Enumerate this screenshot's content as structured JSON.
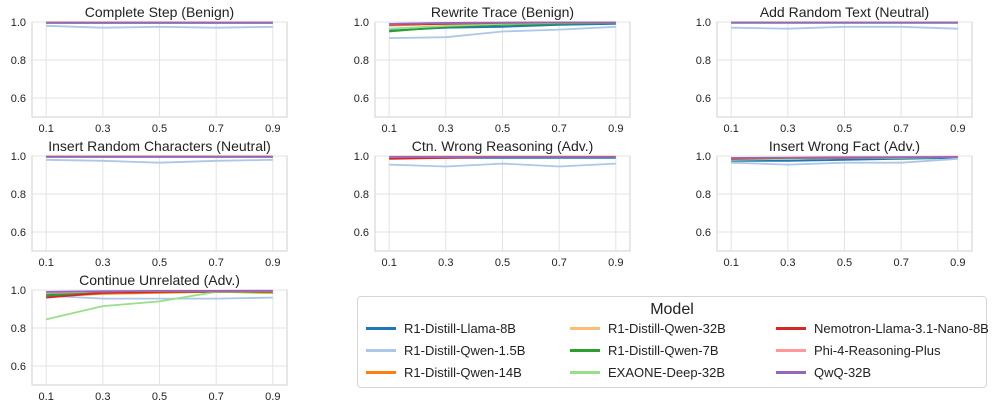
{
  "colors": {
    "R1-Distill-Llama-8B": "#1f77b4",
    "R1-Distill-Qwen-1.5B": "#aec7e8",
    "R1-Distill-Qwen-14B": "#ff7f0e",
    "R1-Distill-Qwen-32B": "#ffbb78",
    "R1-Distill-Qwen-7B": "#2ca02c",
    "EXAONE-Deep-32B": "#98df8a",
    "Nemotron-Llama-3.1-Nano-8B": "#d62728",
    "Phi-4-Reasoning-Plus": "#ff9896",
    "QwQ-32B": "#9467bd"
  },
  "legend": {
    "title": "Model",
    "entries": [
      "R1-Distill-Llama-8B",
      "R1-Distill-Qwen-32B",
      "Nemotron-Llama-3.1-Nano-8B",
      "R1-Distill-Qwen-1.5B",
      "R1-Distill-Qwen-7B",
      "Phi-4-Reasoning-Plus",
      "R1-Distill-Qwen-14B",
      "EXAONE-Deep-32B",
      "QwQ-32B"
    ]
  },
  "chart_data": [
    {
      "type": "line",
      "title": "Complete Step (Benign)",
      "x": [
        0.1,
        0.3,
        0.5,
        0.7,
        0.9
      ],
      "ylim": [
        0.5,
        1.0
      ],
      "yticks": [
        0.6,
        0.8,
        1.0
      ],
      "grid": true,
      "series": [
        {
          "name": "R1-Distill-Llama-8B",
          "values": [
            0.995,
            0.995,
            0.995,
            0.995,
            0.995
          ]
        },
        {
          "name": "R1-Distill-Qwen-1.5B",
          "values": [
            0.98,
            0.97,
            0.975,
            0.97,
            0.975
          ]
        },
        {
          "name": "R1-Distill-Qwen-14B",
          "values": [
            0.997,
            0.998,
            0.998,
            0.998,
            0.998
          ]
        },
        {
          "name": "R1-Distill-Qwen-32B",
          "values": [
            0.997,
            0.997,
            0.998,
            0.997,
            0.998
          ]
        },
        {
          "name": "R1-Distill-Qwen-7B",
          "values": [
            0.996,
            0.996,
            0.997,
            0.997,
            0.997
          ]
        },
        {
          "name": "EXAONE-Deep-32B",
          "values": [
            0.994,
            0.995,
            0.995,
            0.995,
            0.996
          ]
        },
        {
          "name": "Nemotron-Llama-3.1-Nano-8B",
          "values": [
            0.998,
            0.998,
            0.998,
            0.998,
            0.998
          ]
        },
        {
          "name": "Phi-4-Reasoning-Plus",
          "values": [
            0.997,
            0.997,
            0.997,
            0.997,
            0.997
          ]
        },
        {
          "name": "QwQ-32B",
          "values": [
            0.996,
            0.996,
            0.996,
            0.996,
            0.996
          ]
        }
      ]
    },
    {
      "type": "line",
      "title": "Rewrite Trace (Benign)",
      "x": [
        0.1,
        0.3,
        0.5,
        0.7,
        0.9
      ],
      "ylim": [
        0.5,
        1.0
      ],
      "yticks": [
        0.6,
        0.8,
        1.0
      ],
      "grid": true,
      "series": [
        {
          "name": "R1-Distill-Llama-8B",
          "values": [
            0.955,
            0.97,
            0.975,
            0.985,
            0.99
          ]
        },
        {
          "name": "R1-Distill-Qwen-1.5B",
          "values": [
            0.915,
            0.92,
            0.95,
            0.96,
            0.975
          ]
        },
        {
          "name": "R1-Distill-Qwen-14B",
          "values": [
            0.985,
            0.99,
            0.995,
            0.997,
            0.998
          ]
        },
        {
          "name": "R1-Distill-Qwen-32B",
          "values": [
            0.98,
            0.99,
            0.995,
            0.997,
            0.998
          ]
        },
        {
          "name": "R1-Distill-Qwen-7B",
          "values": [
            0.95,
            0.975,
            0.985,
            0.99,
            0.995
          ]
        },
        {
          "name": "EXAONE-Deep-32B",
          "values": [
            0.965,
            0.98,
            0.99,
            0.995,
            0.997
          ]
        },
        {
          "name": "Nemotron-Llama-3.1-Nano-8B",
          "values": [
            0.985,
            0.99,
            0.995,
            0.997,
            0.998
          ]
        },
        {
          "name": "Phi-4-Reasoning-Plus",
          "values": [
            0.99,
            0.995,
            0.997,
            0.998,
            0.998
          ]
        },
        {
          "name": "QwQ-32B",
          "values": [
            0.99,
            0.995,
            0.997,
            0.998,
            0.998
          ]
        }
      ]
    },
    {
      "type": "line",
      "title": "Add Random Text (Neutral)",
      "x": [
        0.1,
        0.3,
        0.5,
        0.7,
        0.9
      ],
      "ylim": [
        0.5,
        1.0
      ],
      "yticks": [
        0.6,
        0.8,
        1.0
      ],
      "grid": true,
      "series": [
        {
          "name": "R1-Distill-Llama-8B",
          "values": [
            0.996,
            0.996,
            0.996,
            0.996,
            0.996
          ]
        },
        {
          "name": "R1-Distill-Qwen-1.5B",
          "values": [
            0.97,
            0.965,
            0.975,
            0.975,
            0.965
          ]
        },
        {
          "name": "R1-Distill-Qwen-14B",
          "values": [
            0.998,
            0.998,
            0.998,
            0.998,
            0.998
          ]
        },
        {
          "name": "R1-Distill-Qwen-32B",
          "values": [
            0.998,
            0.998,
            0.998,
            0.998,
            0.998
          ]
        },
        {
          "name": "R1-Distill-Qwen-7B",
          "values": [
            0.997,
            0.997,
            0.997,
            0.997,
            0.997
          ]
        },
        {
          "name": "EXAONE-Deep-32B",
          "values": [
            0.996,
            0.996,
            0.996,
            0.996,
            0.996
          ]
        },
        {
          "name": "Nemotron-Llama-3.1-Nano-8B",
          "values": [
            0.998,
            0.998,
            0.998,
            0.998,
            0.998
          ]
        },
        {
          "name": "Phi-4-Reasoning-Plus",
          "values": [
            0.997,
            0.997,
            0.997,
            0.997,
            0.997
          ]
        },
        {
          "name": "QwQ-32B",
          "values": [
            0.997,
            0.997,
            0.997,
            0.997,
            0.997
          ]
        }
      ]
    },
    {
      "type": "line",
      "title": "Insert Random Characters (Neutral)",
      "x": [
        0.1,
        0.3,
        0.5,
        0.7,
        0.9
      ],
      "ylim": [
        0.5,
        1.0
      ],
      "yticks": [
        0.6,
        0.8,
        1.0
      ],
      "grid": true,
      "series": [
        {
          "name": "R1-Distill-Llama-8B",
          "values": [
            0.995,
            0.995,
            0.995,
            0.995,
            0.995
          ]
        },
        {
          "name": "R1-Distill-Qwen-1.5B",
          "values": [
            0.98,
            0.975,
            0.965,
            0.975,
            0.98
          ]
        },
        {
          "name": "R1-Distill-Qwen-14B",
          "values": [
            0.998,
            0.998,
            0.998,
            0.998,
            0.998
          ]
        },
        {
          "name": "R1-Distill-Qwen-32B",
          "values": [
            0.998,
            0.998,
            0.998,
            0.998,
            0.998
          ]
        },
        {
          "name": "R1-Distill-Qwen-7B",
          "values": [
            0.997,
            0.997,
            0.997,
            0.997,
            0.997
          ]
        },
        {
          "name": "EXAONE-Deep-32B",
          "values": [
            0.995,
            0.995,
            0.995,
            0.995,
            0.995
          ]
        },
        {
          "name": "Nemotron-Llama-3.1-Nano-8B",
          "values": [
            0.998,
            0.998,
            0.998,
            0.998,
            0.998
          ]
        },
        {
          "name": "Phi-4-Reasoning-Plus",
          "values": [
            0.997,
            0.997,
            0.997,
            0.997,
            0.997
          ]
        },
        {
          "name": "QwQ-32B",
          "values": [
            0.995,
            0.995,
            0.995,
            0.995,
            0.995
          ]
        }
      ]
    },
    {
      "type": "line",
      "title": "Ctn. Wrong Reasoning (Adv.)",
      "x": [
        0.1,
        0.3,
        0.5,
        0.7,
        0.9
      ],
      "ylim": [
        0.5,
        1.0
      ],
      "yticks": [
        0.6,
        0.8,
        1.0
      ],
      "grid": true,
      "series": [
        {
          "name": "R1-Distill-Llama-8B",
          "values": [
            0.99,
            0.99,
            0.99,
            0.99,
            0.99
          ]
        },
        {
          "name": "R1-Distill-Qwen-1.5B",
          "values": [
            0.955,
            0.945,
            0.96,
            0.945,
            0.96
          ]
        },
        {
          "name": "R1-Distill-Qwen-14B",
          "values": [
            0.996,
            0.997,
            0.997,
            0.997,
            0.997
          ]
        },
        {
          "name": "R1-Distill-Qwen-32B",
          "values": [
            0.996,
            0.997,
            0.997,
            0.997,
            0.997
          ]
        },
        {
          "name": "R1-Distill-Qwen-7B",
          "values": [
            0.99,
            0.995,
            0.995,
            0.995,
            0.995
          ]
        },
        {
          "name": "EXAONE-Deep-32B",
          "values": [
            0.993,
            0.995,
            0.995,
            0.995,
            0.995
          ]
        },
        {
          "name": "Nemotron-Llama-3.1-Nano-8B",
          "values": [
            0.985,
            0.99,
            0.995,
            0.995,
            0.995
          ]
        },
        {
          "name": "Phi-4-Reasoning-Plus",
          "values": [
            0.995,
            0.996,
            0.997,
            0.997,
            0.997
          ]
        },
        {
          "name": "QwQ-32B",
          "values": [
            0.995,
            0.995,
            0.995,
            0.995,
            0.995
          ]
        }
      ]
    },
    {
      "type": "line",
      "title": "Insert Wrong Fact (Adv.)",
      "x": [
        0.1,
        0.3,
        0.5,
        0.7,
        0.9
      ],
      "ylim": [
        0.5,
        1.0
      ],
      "yticks": [
        0.6,
        0.8,
        1.0
      ],
      "grid": true,
      "series": [
        {
          "name": "R1-Distill-Llama-8B",
          "values": [
            0.975,
            0.975,
            0.98,
            0.985,
            0.99
          ]
        },
        {
          "name": "R1-Distill-Qwen-1.5B",
          "values": [
            0.965,
            0.955,
            0.965,
            0.965,
            0.985
          ]
        },
        {
          "name": "R1-Distill-Qwen-14B",
          "values": [
            0.99,
            0.99,
            0.995,
            0.995,
            0.996
          ]
        },
        {
          "name": "R1-Distill-Qwen-32B",
          "values": [
            0.99,
            0.99,
            0.995,
            0.995,
            0.996
          ]
        },
        {
          "name": "R1-Distill-Qwen-7B",
          "values": [
            0.985,
            0.985,
            0.99,
            0.99,
            0.995
          ]
        },
        {
          "name": "EXAONE-Deep-32B",
          "values": [
            0.98,
            0.985,
            0.99,
            0.99,
            0.995
          ]
        },
        {
          "name": "Nemotron-Llama-3.1-Nano-8B",
          "values": [
            0.985,
            0.99,
            0.99,
            0.995,
            0.995
          ]
        },
        {
          "name": "Phi-4-Reasoning-Plus",
          "values": [
            0.99,
            0.992,
            0.995,
            0.995,
            0.996
          ]
        },
        {
          "name": "QwQ-32B",
          "values": [
            0.99,
            0.99,
            0.992,
            0.993,
            0.995
          ]
        }
      ]
    },
    {
      "type": "line",
      "title": "Continue Unrelated (Adv.)",
      "x": [
        0.1,
        0.3,
        0.5,
        0.7,
        0.9
      ],
      "ylim": [
        0.5,
        1.0
      ],
      "yticks": [
        0.6,
        0.8,
        1.0
      ],
      "grid": true,
      "series": [
        {
          "name": "R1-Distill-Llama-8B",
          "values": [
            0.98,
            0.99,
            0.99,
            0.993,
            0.995
          ]
        },
        {
          "name": "R1-Distill-Qwen-1.5B",
          "values": [
            0.97,
            0.955,
            0.955,
            0.955,
            0.96
          ]
        },
        {
          "name": "R1-Distill-Qwen-14B",
          "values": [
            0.965,
            0.98,
            0.985,
            0.99,
            0.985
          ]
        },
        {
          "name": "R1-Distill-Qwen-32B",
          "values": [
            0.985,
            0.99,
            0.993,
            0.995,
            0.995
          ]
        },
        {
          "name": "R1-Distill-Qwen-7B",
          "values": [
            0.97,
            0.985,
            0.99,
            0.99,
            0.99
          ]
        },
        {
          "name": "EXAONE-Deep-32B",
          "values": [
            0.845,
            0.915,
            0.94,
            0.99,
            0.995
          ]
        },
        {
          "name": "Nemotron-Llama-3.1-Nano-8B",
          "values": [
            0.96,
            0.985,
            0.99,
            0.993,
            0.995
          ]
        },
        {
          "name": "Phi-4-Reasoning-Plus",
          "values": [
            0.99,
            0.993,
            0.995,
            0.996,
            0.996
          ]
        },
        {
          "name": "QwQ-32B",
          "values": [
            0.99,
            0.993,
            0.995,
            0.995,
            0.996
          ]
        }
      ]
    }
  ]
}
